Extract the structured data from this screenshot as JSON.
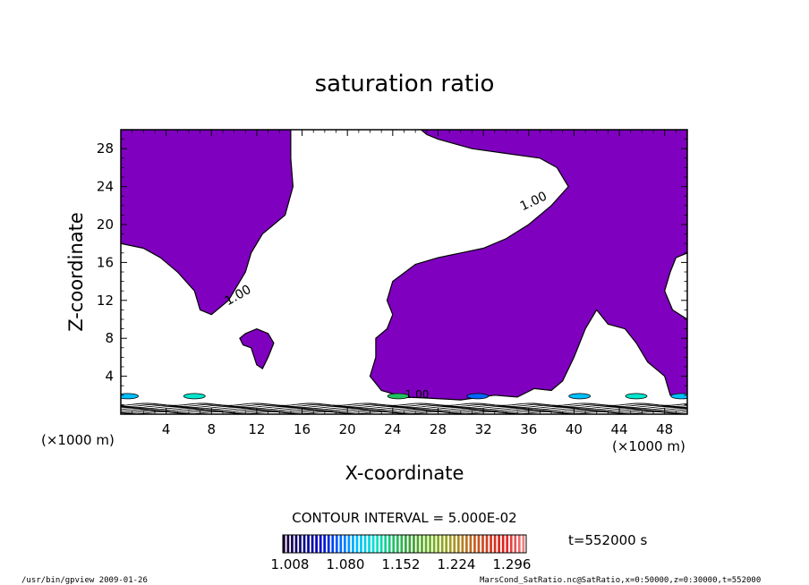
{
  "chart_data": {
    "type": "contour",
    "title": "saturation ratio",
    "xlabel": "X-coordinate",
    "ylabel": "Z-coordinate",
    "x_unit": "(×1000 m)",
    "z_unit": "(×1000 m)",
    "xlim": [
      0,
      50
    ],
    "ylim": [
      0,
      30
    ],
    "x_ticks": [
      4,
      8,
      12,
      16,
      20,
      24,
      28,
      32,
      36,
      40,
      44,
      48
    ],
    "y_ticks": [
      4,
      8,
      12,
      16,
      20,
      24,
      28
    ],
    "contour_interval_label": "CONTOUR INTERVAL = 5.000E-02",
    "time_label": "t=552000 s",
    "contour_labels": [
      "1.00",
      "1.00",
      "1.00"
    ],
    "fill_color": "#7f00bf",
    "colorbar": {
      "tick_labels": [
        "1.008",
        "1.080",
        "1.152",
        "1.224",
        "1.296"
      ],
      "colors": [
        "#1a0033",
        "#0a0a80",
        "#0000cc",
        "#0066ff",
        "#00bfff",
        "#00e5cc",
        "#20c060",
        "#40a030",
        "#70b020",
        "#a0a020",
        "#c07020",
        "#d04020",
        "#e02020",
        "#f08080"
      ]
    },
    "saturated_regions": [
      {
        "name": "upper-left",
        "points": [
          [
            0,
            30
          ],
          [
            15,
            30
          ],
          [
            15,
            27
          ],
          [
            15.2,
            24
          ],
          [
            14.5,
            21
          ],
          [
            12.5,
            19
          ],
          [
            11.5,
            17
          ],
          [
            11,
            15
          ],
          [
            9.5,
            12
          ],
          [
            8,
            10.5
          ],
          [
            7,
            11
          ],
          [
            6.5,
            13
          ],
          [
            5,
            15
          ],
          [
            3.5,
            16.5
          ],
          [
            2,
            17.5
          ],
          [
            0,
            18
          ]
        ]
      },
      {
        "name": "blob",
        "points": [
          [
            10.5,
            8
          ],
          [
            11,
            8.5
          ],
          [
            12,
            9
          ],
          [
            13,
            8.5
          ],
          [
            13.5,
            7.5
          ],
          [
            13,
            6
          ],
          [
            12.5,
            4.8
          ],
          [
            12,
            5.2
          ],
          [
            11.5,
            7
          ],
          [
            10.8,
            7.3
          ]
        ]
      },
      {
        "name": "right-main",
        "points": [
          [
            26.5,
            30
          ],
          [
            50,
            30
          ],
          [
            50,
            17
          ],
          [
            49,
            16.5
          ],
          [
            48.5,
            15
          ],
          [
            48,
            13
          ],
          [
            48.7,
            11
          ],
          [
            50,
            10
          ],
          [
            50,
            2
          ],
          [
            48.5,
            2
          ],
          [
            48,
            4
          ],
          [
            46.5,
            5.5
          ],
          [
            45.5,
            7.5
          ],
          [
            44.5,
            9
          ],
          [
            43,
            9.5
          ],
          [
            42,
            11
          ],
          [
            41,
            9
          ],
          [
            40,
            6
          ],
          [
            39,
            3.5
          ],
          [
            38,
            2.5
          ],
          [
            36.5,
            2.7
          ],
          [
            35,
            1.8
          ],
          [
            33,
            2
          ],
          [
            30,
            1.5
          ],
          [
            27,
            1.7
          ],
          [
            25,
            1.8
          ],
          [
            23,
            2.5
          ],
          [
            22,
            4
          ],
          [
            22.5,
            6
          ],
          [
            22.5,
            8
          ],
          [
            23.5,
            9
          ],
          [
            24,
            10.5
          ],
          [
            23.5,
            12
          ],
          [
            24,
            14
          ],
          [
            26,
            15.8
          ],
          [
            28,
            16.5
          ],
          [
            30,
            17
          ],
          [
            32,
            17.5
          ],
          [
            34,
            18.5
          ],
          [
            36,
            20
          ],
          [
            38,
            22
          ],
          [
            39.5,
            24
          ],
          [
            38.5,
            26
          ],
          [
            37,
            27
          ],
          [
            34,
            27.5
          ],
          [
            31,
            28
          ],
          [
            28,
            29
          ],
          [
            27,
            29.5
          ]
        ]
      }
    ]
  },
  "footer": {
    "left": "/usr/bin/gpview   2009-01-26",
    "right": "MarsCond_SatRatio.nc@SatRatio,x=0:50000,z=0:30000,t=552000"
  }
}
